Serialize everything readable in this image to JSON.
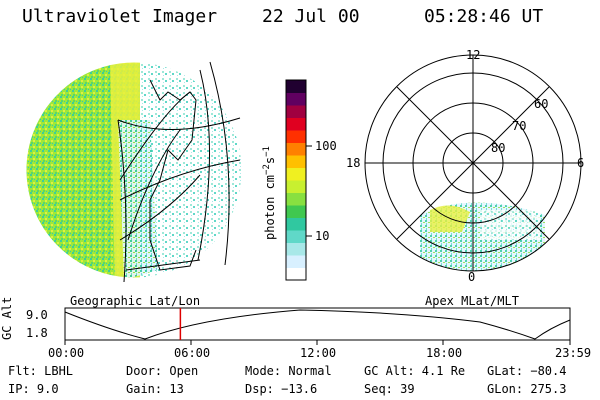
{
  "header": {
    "title": "Ultraviolet Imager",
    "date": "22 Jul 00",
    "time": "05:28:46 UT"
  },
  "left_panel": {
    "label": "Geographic Lat/Lon"
  },
  "right_panel": {
    "label": "Apex MLat/MLT",
    "mlt_labels": {
      "top": "12",
      "left": "18",
      "right": "6",
      "bottom": "0"
    },
    "lat_labels": [
      "60",
      "70",
      "80"
    ]
  },
  "colorbar": {
    "unit": "photon cm",
    "unit_exp1": "−2",
    "unit_mid": "s",
    "unit_exp2": "−1",
    "ticks": [
      "100",
      "10"
    ],
    "colors": [
      "#ffffff",
      "#d8f0ff",
      "#a8e8e8",
      "#60d8c8",
      "#30c8a0",
      "#40c850",
      "#88e040",
      "#c8f030",
      "#f0f020",
      "#ffc000",
      "#ff8000",
      "#ff3000",
      "#e00020",
      "#a00040",
      "#600060",
      "#200030"
    ]
  },
  "timeline": {
    "ylabel": "GC Alt",
    "yticks": [
      "9.0",
      "1.8"
    ],
    "xticks": [
      "00:00",
      "06:00",
      "12:00",
      "18:00",
      "23:59"
    ],
    "marker_color": "#dd0000",
    "marker_time": "05:28:46"
  },
  "info": {
    "flt": "Flt: LBHL",
    "ip": "IP:  9.0",
    "door": "Door: Open",
    "gain": "Gain: 13",
    "mode": "Mode: Normal",
    "dsp": "Dsp:  −13.6",
    "gcalt": "GC Alt: 4.1 Re",
    "seq": "Seq: 39",
    "glat": "GLat: −80.4",
    "glon": "GLon: 275.3"
  }
}
